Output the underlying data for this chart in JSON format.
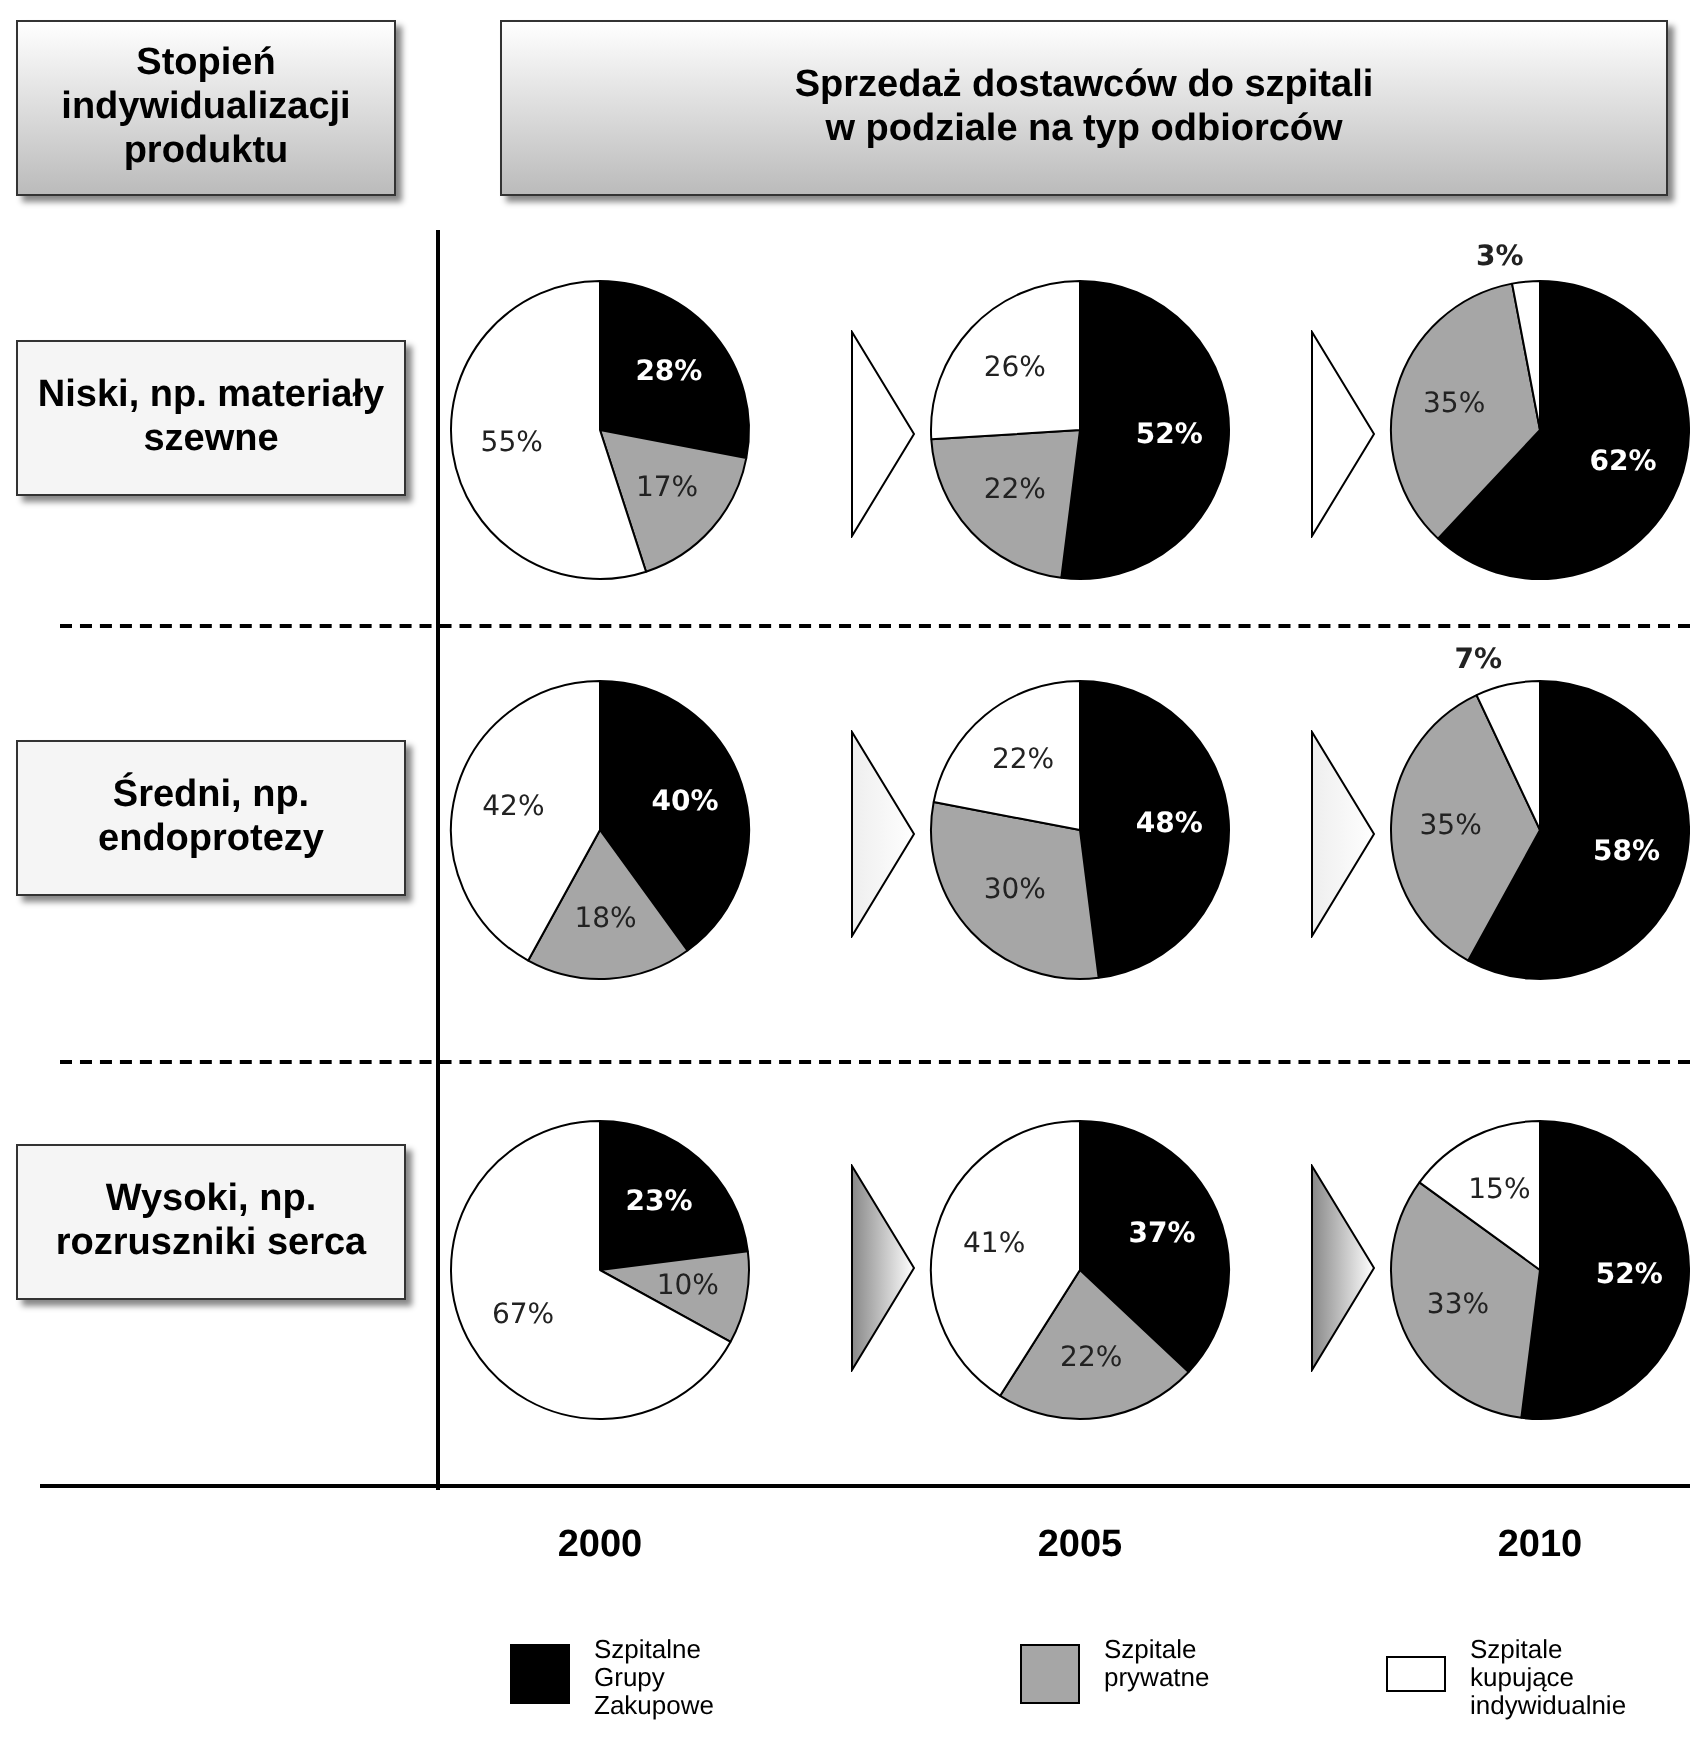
{
  "chart_data": [
    {
      "type": "other",
      "title": "Sprzedaż dostawców do szpitali w podziale na typ odbiorców",
      "annotations": [
        "Stopień indywidualizacji produktu",
        "Niski, np. materiały szewne",
        "Średni, np. endoprotezy",
        "Wysoki, np. rozruszniki serca",
        "2000",
        "2005",
        "2010"
      ]
    },
    {
      "type": "pie",
      "categories": [
        "Szpitalne Grupy Zakupowe",
        "Szpitale prywatne",
        "Szpitale kupujące indywidualnie"
      ],
      "values": [
        28,
        17,
        55
      ],
      "value_labels": [
        "28%",
        "17%",
        "55%"
      ],
      "colors": [
        "#000000",
        "#a6a6a6",
        "#ffffff"
      ],
      "legend": "bottom"
    },
    {
      "type": "pie",
      "categories": [
        null,
        null,
        null
      ],
      "values": [
        52,
        22,
        26
      ],
      "value_labels": [
        "52%",
        "22%",
        "26%"
      ],
      "colors": [
        "#000000",
        "#a6a6a6",
        "#ffffff"
      ]
    },
    {
      "type": "pie",
      "categories": [
        null,
        null,
        null
      ],
      "values": [
        62,
        35,
        3
      ],
      "value_labels": [
        "62%",
        "35%",
        "3%"
      ],
      "colors": [
        "#000000",
        "#a6a6a6",
        "#ffffff"
      ]
    },
    {
      "type": "pie",
      "categories": [
        null,
        null,
        null
      ],
      "values": [
        40,
        18,
        42
      ],
      "value_labels": [
        "40%",
        "18%",
        "42%"
      ],
      "colors": [
        "#000000",
        "#a6a6a6",
        "#ffffff"
      ]
    },
    {
      "type": "pie",
      "categories": [
        null,
        null,
        null
      ],
      "values": [
        48,
        30,
        22
      ],
      "value_labels": [
        "48%",
        "30%",
        "22%"
      ],
      "colors": [
        "#000000",
        "#a6a6a6",
        "#ffffff"
      ]
    },
    {
      "type": "pie",
      "categories": [
        null,
        null,
        null
      ],
      "values": [
        58,
        35,
        7
      ],
      "value_labels": [
        "58%",
        "35%",
        "7%"
      ],
      "colors": [
        "#000000",
        "#a6a6a6",
        "#ffffff"
      ]
    },
    {
      "type": "pie",
      "categories": [
        null,
        null,
        null
      ],
      "values": [
        23,
        10,
        67
      ],
      "value_labels": [
        "23%",
        "10%",
        "67%"
      ],
      "colors": [
        "#000000",
        "#a6a6a6",
        "#ffffff"
      ]
    },
    {
      "type": "pie",
      "categories": [
        null,
        null,
        null
      ],
      "values": [
        37,
        22,
        41
      ],
      "value_labels": [
        "37%",
        "22%",
        "41%"
      ],
      "colors": [
        "#000000",
        "#a6a6a6",
        "#ffffff"
      ]
    },
    {
      "type": "pie",
      "categories": [
        null,
        null,
        null
      ],
      "values": [
        52,
        33,
        15
      ],
      "value_labels": [
        "52%",
        "33%",
        "15%"
      ],
      "colors": [
        "#000000",
        "#a6a6a6",
        "#ffffff"
      ]
    }
  ]
}
